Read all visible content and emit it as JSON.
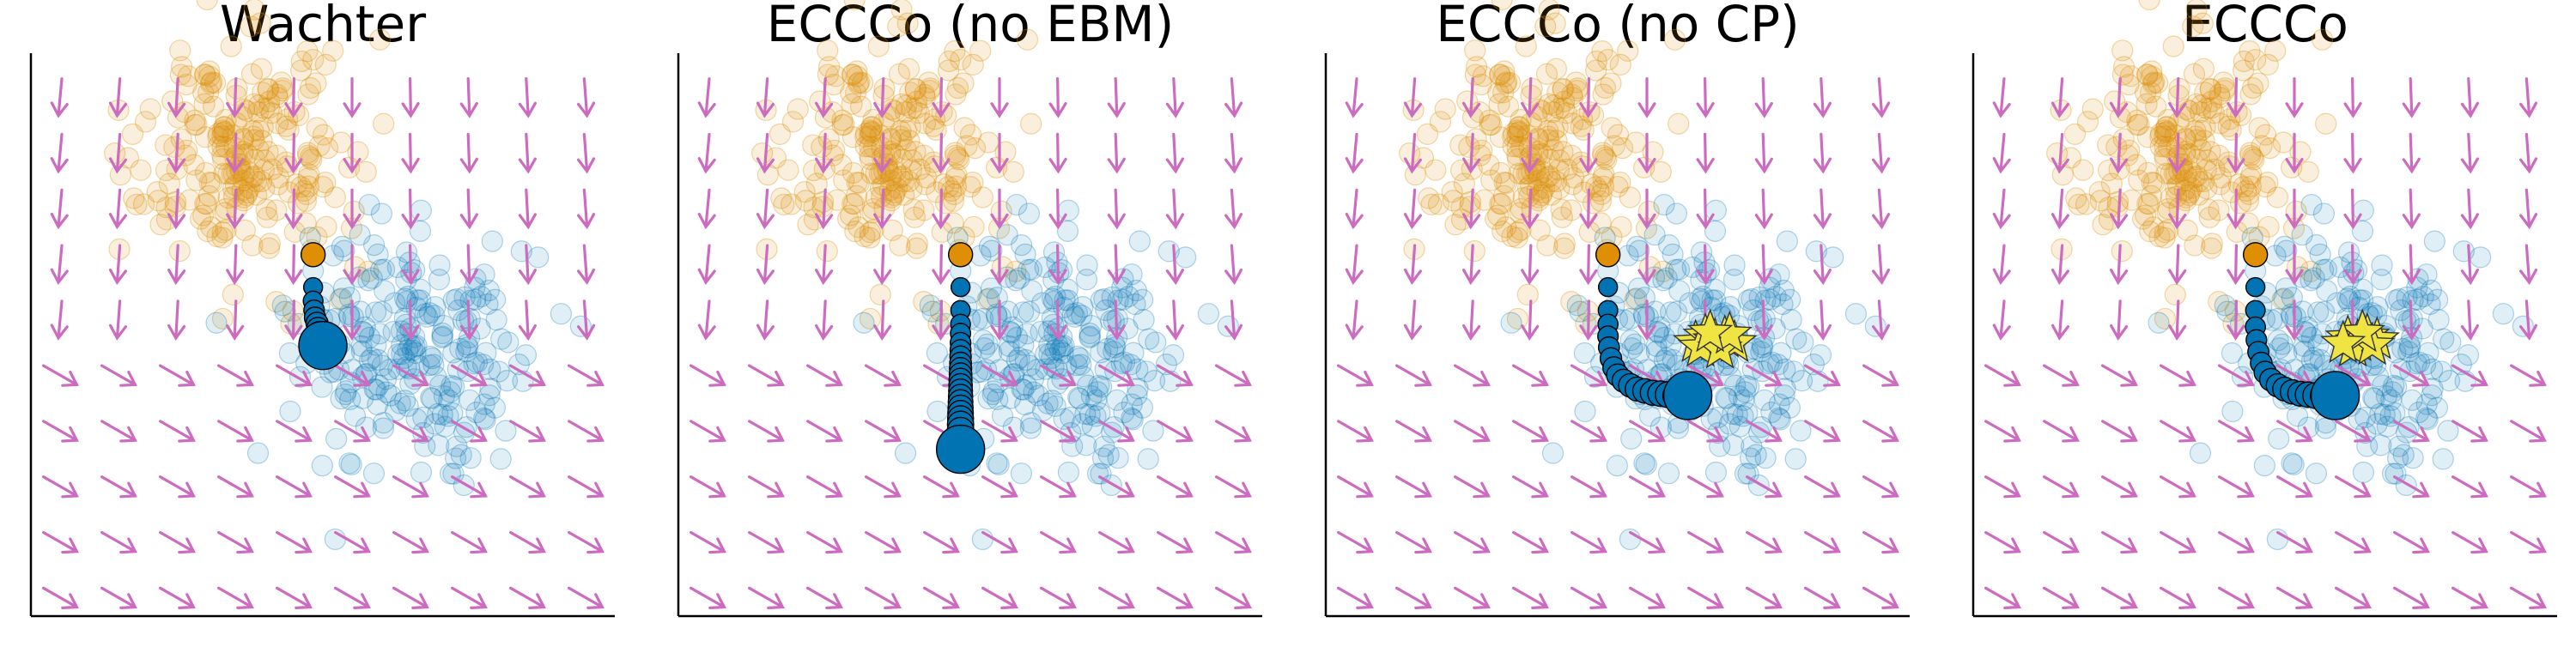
{
  "chart_data": [
    {
      "type": "scatter",
      "title": "Wachter",
      "xlabel": "",
      "ylabel": "",
      "xlim": [
        -3,
        3
      ],
      "ylim": [
        -3,
        3
      ],
      "grid": false,
      "legend": "none",
      "series": [
        {
          "role": "class-orange",
          "color": "#de8f05"
        },
        {
          "role": "class-blue",
          "color": "#0173b2"
        },
        {
          "role": "factual",
          "color": "#de8f05",
          "x": [
            -0.1
          ],
          "y": [
            0.9
          ]
        },
        {
          "role": "path",
          "color": "#0173b2",
          "x": [
            -0.1,
            -0.1,
            -0.09,
            -0.08,
            -0.06,
            -0.05,
            -0.04,
            -0.03,
            -0.02,
            -0.01,
            0.0,
            0.0
          ],
          "y": [
            0.55,
            0.4,
            0.3,
            0.22,
            0.16,
            0.1,
            0.05,
            0.01,
            -0.02,
            -0.05,
            -0.07,
            -0.08
          ]
        },
        {
          "role": "gradient-field",
          "color": "#cc6bbf"
        }
      ]
    },
    {
      "type": "scatter",
      "title": "ECCCo (no EBM)",
      "xlabel": "",
      "ylabel": "",
      "xlim": [
        -3,
        3
      ],
      "ylim": [
        -3,
        3
      ],
      "grid": false,
      "legend": "none",
      "series": [
        {
          "role": "class-orange",
          "color": "#de8f05"
        },
        {
          "role": "class-blue",
          "color": "#0173b2"
        },
        {
          "role": "factual",
          "color": "#de8f05",
          "x": [
            -0.1
          ],
          "y": [
            0.9
          ]
        },
        {
          "role": "path",
          "color": "#0173b2",
          "x": [
            -0.1,
            -0.1,
            -0.1,
            -0.1,
            -0.1,
            -0.1,
            -0.1,
            -0.1,
            -0.1,
            -0.1,
            -0.1,
            -0.1,
            -0.1,
            -0.1,
            -0.1,
            -0.1,
            -0.1,
            -0.1,
            -0.1,
            -0.1,
            -0.1,
            -0.1
          ],
          "y": [
            0.55,
            0.3,
            0.15,
            0.05,
            -0.05,
            -0.13,
            -0.2,
            -0.27,
            -0.33,
            -0.39,
            -0.45,
            -0.51,
            -0.57,
            -0.63,
            -0.69,
            -0.75,
            -0.81,
            -0.87,
            -0.93,
            -1.0,
            -1.1,
            -1.2
          ]
        },
        {
          "role": "gradient-field",
          "color": "#cc6bbf"
        }
      ]
    },
    {
      "type": "scatter",
      "title": "ECCCo (no CP)",
      "xlabel": "",
      "ylabel": "",
      "xlim": [
        -3,
        3
      ],
      "ylim": [
        -3,
        3
      ],
      "grid": false,
      "legend": "none",
      "series": [
        {
          "role": "class-orange",
          "color": "#de8f05"
        },
        {
          "role": "class-blue",
          "color": "#0173b2"
        },
        {
          "role": "factual",
          "color": "#de8f05",
          "x": [
            -0.1
          ],
          "y": [
            0.9
          ]
        },
        {
          "role": "path",
          "color": "#0173b2",
          "x": [
            -0.1,
            -0.1,
            -0.1,
            -0.1,
            -0.09,
            -0.07,
            -0.04,
            0.0,
            0.06,
            0.13,
            0.2,
            0.28,
            0.36,
            0.44,
            0.52,
            0.6,
            0.66,
            0.72
          ],
          "y": [
            0.55,
            0.3,
            0.15,
            0.02,
            -0.1,
            -0.22,
            -0.32,
            -0.4,
            -0.46,
            -0.51,
            -0.55,
            -0.57,
            -0.59,
            -0.6,
            -0.61,
            -0.62,
            -0.62,
            -0.62
          ]
        },
        {
          "role": "counterfactual-star",
          "color": "#f0e442",
          "x": [
            0.8,
            0.9,
            1.0,
            1.1,
            1.2,
            0.85,
            1.05,
            1.15,
            0.95
          ],
          "y": [
            -0.05,
            0.02,
            -0.03,
            0.0,
            -0.05,
            -0.1,
            -0.12,
            0.04,
            0.06
          ]
        },
        {
          "role": "gradient-field",
          "color": "#cc6bbf"
        }
      ]
    },
    {
      "type": "scatter",
      "title": "ECCCo",
      "xlabel": "",
      "ylabel": "",
      "xlim": [
        -3,
        3
      ],
      "ylim": [
        -3,
        3
      ],
      "grid": false,
      "legend": "none",
      "series": [
        {
          "role": "class-orange",
          "color": "#de8f05"
        },
        {
          "role": "class-blue",
          "color": "#0173b2"
        },
        {
          "role": "factual",
          "color": "#de8f05",
          "x": [
            -0.1
          ],
          "y": [
            0.9
          ]
        },
        {
          "role": "path",
          "color": "#0173b2",
          "x": [
            -0.1,
            -0.1,
            -0.1,
            -0.09,
            -0.07,
            -0.04,
            0.0,
            0.06,
            0.13,
            0.2,
            0.28,
            0.36,
            0.44,
            0.52,
            0.6,
            0.66,
            0.72
          ],
          "y": [
            0.55,
            0.3,
            0.12,
            -0.02,
            -0.15,
            -0.27,
            -0.37,
            -0.45,
            -0.51,
            -0.55,
            -0.58,
            -0.6,
            -0.61,
            -0.62,
            -0.62,
            -0.62,
            -0.62
          ]
        },
        {
          "role": "counterfactual-star",
          "color": "#f0e442",
          "x": [
            0.85,
            0.95,
            1.05,
            1.15,
            0.9,
            1.1,
            1.0,
            0.8
          ],
          "y": [
            0.0,
            -0.04,
            0.02,
            -0.02,
            -0.1,
            -0.08,
            0.06,
            -0.06
          ]
        },
        {
          "role": "gradient-field",
          "color": "#cc6bbf"
        }
      ]
    }
  ]
}
